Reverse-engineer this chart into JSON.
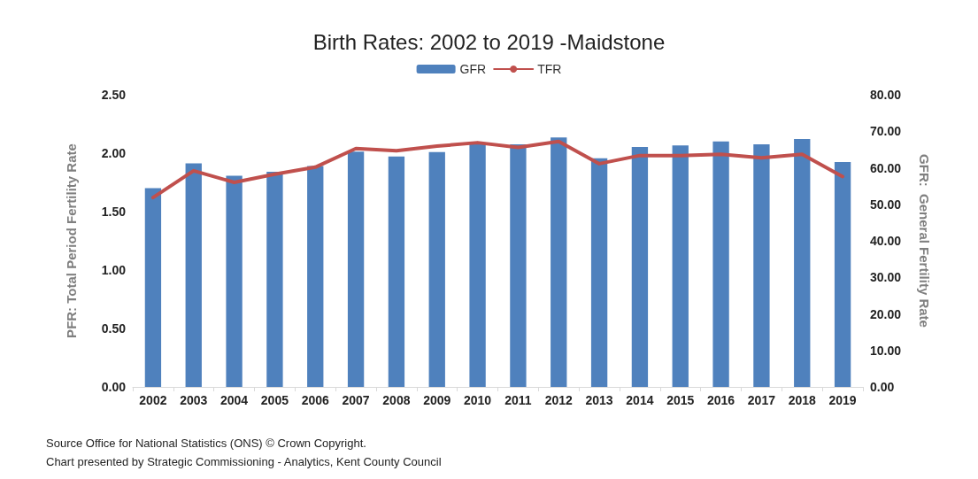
{
  "chart_data": {
    "type": "bar",
    "title": "Birth Rates: 2002 to 2019 -Maidstone",
    "categories": [
      "2002",
      "2003",
      "2004",
      "2005",
      "2006",
      "2007",
      "2008",
      "2009",
      "2010",
      "2011",
      "2012",
      "2013",
      "2014",
      "2015",
      "2016",
      "2017",
      "2018",
      "2019"
    ],
    "series": [
      {
        "name": "GFR",
        "axis": "y2",
        "color": "#4f81bd",
        "values": [
          54.4,
          61.2,
          57.8,
          58.9,
          60.5,
          64.4,
          63.1,
          64.3,
          66.4,
          66.4,
          68.3,
          62.6,
          65.7,
          66.1,
          67.2,
          66.4,
          67.9,
          61.6
        ]
      },
      {
        "name": "TFR",
        "type": "line",
        "axis": "y",
        "color": "#c0504d",
        "values": [
          1.62,
          1.85,
          1.75,
          1.82,
          1.88,
          2.04,
          2.02,
          2.06,
          2.09,
          2.05,
          2.1,
          1.91,
          1.98,
          1.98,
          1.99,
          1.96,
          1.99,
          1.8
        ]
      }
    ],
    "ylabel": "PFR: Total Period Fertility Rate",
    "y2label": "GFR:  General Fertility Rate",
    "ylim": [
      0,
      2.5
    ],
    "yticks": [
      {
        "value": 0,
        "label": "0.00"
      },
      {
        "value": 0.5,
        "label": "0.50"
      },
      {
        "value": 1,
        "label": "1.00"
      },
      {
        "value": 1.5,
        "label": "1.50"
      },
      {
        "value": 2,
        "label": "2.00"
      },
      {
        "value": 2.5,
        "label": "2.50"
      }
    ],
    "y2lim": [
      0,
      80
    ],
    "y2ticks": [
      {
        "value": 0,
        "label": "0.00"
      },
      {
        "value": 10,
        "label": "10.00"
      },
      {
        "value": 20,
        "label": "20.00"
      },
      {
        "value": 30,
        "label": "30.00"
      },
      {
        "value": 40,
        "label": "40.00"
      },
      {
        "value": 50,
        "label": "50.00"
      },
      {
        "value": 60,
        "label": "60.00"
      },
      {
        "value": 70,
        "label": "70.00"
      },
      {
        "value": 80,
        "label": "80.00"
      }
    ],
    "legend": "top",
    "grid": false,
    "marker": "none",
    "annotations": [
      "Source Office for National Statistics (ONS) © Crown Copyright.",
      "Chart presented by Strategic Commissioning - Analytics, Kent County Council"
    ]
  }
}
